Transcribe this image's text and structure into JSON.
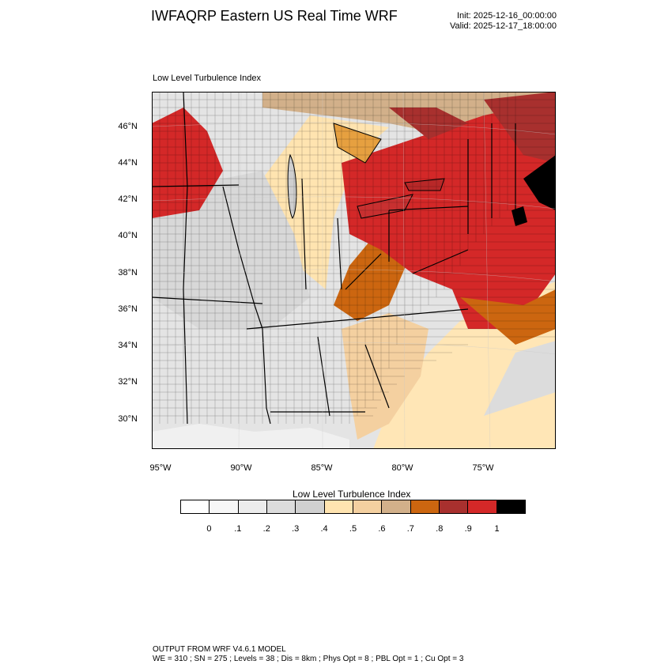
{
  "header": {
    "title": "IWFAQRP Eastern US Real Time WRF",
    "init": "Init: 2025-12-16_00:00:00",
    "valid": "Valid: 2025-12-17_18:00:00",
    "subtitle": "Low Level Turbulence Index"
  },
  "map": {
    "lat_labels": [
      "46°N",
      "44°N",
      "42°N",
      "40°N",
      "38°N",
      "36°N",
      "34°N",
      "32°N",
      "30°N"
    ],
    "lon_labels": [
      "95°W",
      "90°W",
      "85°W",
      "80°W",
      "75°W"
    ]
  },
  "colorbar": {
    "title": "Low Level Turbulence Index",
    "colors": [
      "#ffffff",
      "#f7f7f7",
      "#ececec",
      "#dcdcdc",
      "#d0d0d0",
      "#ffe4b0",
      "#f4d0a0",
      "#d2b08a",
      "#cc6610",
      "#a8302e",
      "#d42828",
      "#000000"
    ],
    "tick_labels": [
      "0",
      ".1",
      ".2",
      ".3",
      ".4",
      ".5",
      ".6",
      ".7",
      ".8",
      ".9",
      "1"
    ]
  },
  "footer": {
    "line1": "OUTPUT FROM WRF V4.6.1 MODEL",
    "line2": "WE = 310 ; SN = 275 ; Levels = 38 ; Dis = 8km ; Phys Opt = 8 ; PBL Opt = 1 ; Cu Opt = 3"
  }
}
